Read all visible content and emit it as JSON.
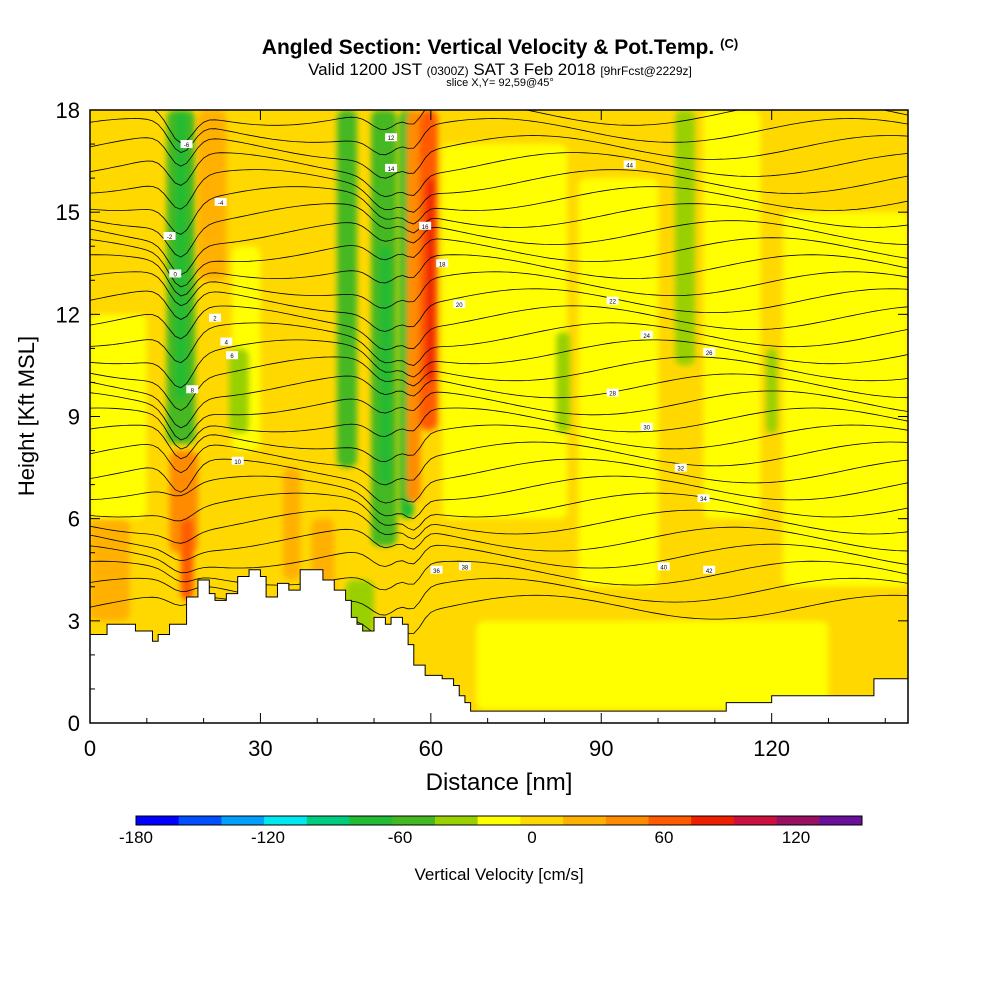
{
  "chart_data": {
    "type": "heatmap",
    "title": "Angled Section: Vertical Velocity & Pot.Temp.",
    "title_tag": "(C)",
    "subtitle": {
      "valid": "Valid 1200 JST",
      "utc": "(0300Z)",
      "date": "SAT 3 Feb 2018",
      "forecast": "[9hrFcst@2229z]"
    },
    "slice_label": "slice X,Y= 92,59@45°",
    "xlabel": "Distance [nm]",
    "ylabel": "Height [Kft MSL]",
    "xlim": [
      0,
      144
    ],
    "ylim": [
      0,
      18
    ],
    "x_ticks": [
      "0",
      "30",
      "60",
      "90",
      "120"
    ],
    "y_ticks": [
      "0",
      "3",
      "6",
      "9",
      "12",
      "15",
      "18"
    ],
    "colorbar": {
      "label": "Vertical Velocity [cm/s]",
      "tick_labels": [
        "-180",
        "-120",
        "-60",
        "0",
        "60",
        "120"
      ],
      "range": [
        -180,
        150
      ],
      "step": 15,
      "colors": [
        "#0000ff",
        "#0050ff",
        "#00a0ff",
        "#00e8f0",
        "#00cc80",
        "#22bb33",
        "#44b822",
        "#99d000",
        "#ffff00",
        "#ffd800",
        "#ffb000",
        "#ff8c00",
        "#ff5a00",
        "#ee2000",
        "#cc1040",
        "#991060",
        "#6a109a"
      ]
    },
    "terrain_kft": [
      [
        0,
        2.6
      ],
      [
        3,
        2.6
      ],
      [
        3,
        2.9
      ],
      [
        8,
        2.9
      ],
      [
        8,
        2.7
      ],
      [
        11,
        2.7
      ],
      [
        11,
        2.4
      ],
      [
        12,
        2.4
      ],
      [
        12,
        2.6
      ],
      [
        14,
        2.6
      ],
      [
        14,
        2.9
      ],
      [
        17,
        2.9
      ],
      [
        17,
        3.7
      ],
      [
        19,
        3.7
      ],
      [
        19,
        4.2
      ],
      [
        21,
        4.2
      ],
      [
        21,
        3.8
      ],
      [
        22,
        3.8
      ],
      [
        22,
        3.6
      ],
      [
        24,
        3.6
      ],
      [
        24,
        3.8
      ],
      [
        26,
        3.8
      ],
      [
        26,
        4.3
      ],
      [
        28,
        4.3
      ],
      [
        28,
        4.5
      ],
      [
        30,
        4.5
      ],
      [
        30,
        4.3
      ],
      [
        31,
        4.3
      ],
      [
        31,
        3.7
      ],
      [
        33,
        3.7
      ],
      [
        33,
        4.1
      ],
      [
        35,
        4.1
      ],
      [
        35,
        3.9
      ],
      [
        37,
        3.9
      ],
      [
        37,
        4.5
      ],
      [
        41,
        4.5
      ],
      [
        41,
        4.2
      ],
      [
        43,
        4.2
      ],
      [
        43,
        3.9
      ],
      [
        45,
        3.9
      ],
      [
        45,
        3.6
      ],
      [
        46,
        3.6
      ],
      [
        46,
        3.1
      ],
      [
        47,
        3.1
      ],
      [
        47,
        2.9
      ],
      [
        48,
        2.9
      ],
      [
        48,
        2.7
      ],
      [
        50,
        2.7
      ],
      [
        50,
        3.1
      ],
      [
        52,
        3.1
      ],
      [
        52,
        2.9
      ],
      [
        53,
        2.9
      ],
      [
        53,
        3.1
      ],
      [
        55,
        3.1
      ],
      [
        55,
        2.9
      ],
      [
        56,
        2.9
      ],
      [
        56,
        2.3
      ],
      [
        57,
        2.3
      ],
      [
        57,
        1.7
      ],
      [
        59,
        1.7
      ],
      [
        59,
        1.4
      ],
      [
        62,
        1.4
      ],
      [
        62,
        1.3
      ],
      [
        64,
        1.3
      ],
      [
        64,
        1.1
      ],
      [
        65,
        1.1
      ],
      [
        65,
        0.8
      ],
      [
        66,
        0.8
      ],
      [
        66,
        0.6
      ],
      [
        67,
        0.6
      ],
      [
        67,
        0.35
      ],
      [
        112,
        0.35
      ],
      [
        112,
        0.6
      ],
      [
        120,
        0.6
      ],
      [
        120,
        0.8
      ],
      [
        138,
        0.8
      ],
      [
        138,
        1.3
      ],
      [
        144,
        1.3
      ]
    ],
    "potential_temperature_isotherms": {
      "units": "C",
      "labels": [
        "-6",
        "-4",
        "-2",
        "0",
        "2",
        "4",
        "6",
        "8",
        "10",
        "12",
        "14",
        "16",
        "18",
        "20",
        "22",
        "24",
        "26",
        "28",
        "30",
        "32",
        "34",
        "36",
        "38",
        "40",
        "42",
        "44"
      ]
    }
  }
}
